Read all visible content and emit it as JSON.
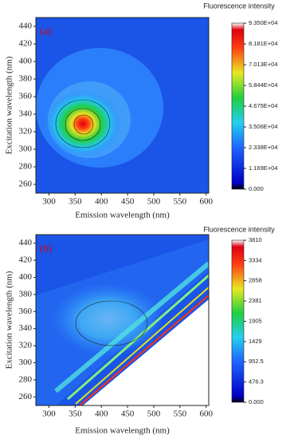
{
  "chart_data": [
    {
      "type": "heatmap",
      "panel_label": "(a)",
      "x_label": "Emission wavelength (nm)",
      "y_label": "Excitation wavelength (nm)",
      "xlim": [
        275,
        605
      ],
      "xticks": [
        300,
        350,
        400,
        450,
        500,
        550,
        600
      ],
      "ylim": [
        250,
        450
      ],
      "yticks": [
        260,
        280,
        300,
        320,
        340,
        360,
        380,
        400,
        420,
        440
      ],
      "colorbar_title": "Fluorescence intensity",
      "colorbar_lim": [
        0,
        93500
      ],
      "colorbar_ticks": [
        {
          "value": 0,
          "label": "0.000"
        },
        {
          "value": 11690,
          "label": "1.169E+04"
        },
        {
          "value": 23380,
          "label": "2.338E+04"
        },
        {
          "value": 35060,
          "label": "3.506E+04"
        },
        {
          "value": 46750,
          "label": "4.675E+04"
        },
        {
          "value": 58440,
          "label": "5.844E+04"
        },
        {
          "value": 70130,
          "label": "7.013E+04"
        },
        {
          "value": 81810,
          "label": "8.181E+04"
        },
        {
          "value": 93500,
          "label": "9.350E+04"
        }
      ]
    },
    {
      "type": "heatmap",
      "panel_label": "(b)",
      "x_label": "Emission wavelength (nm)",
      "y_label": "Excitation wavelength (nm)",
      "xlim": [
        275,
        605
      ],
      "xticks": [
        300,
        350,
        400,
        450,
        500,
        550,
        600
      ],
      "ylim": [
        250,
        450
      ],
      "yticks": [
        260,
        280,
        300,
        320,
        340,
        360,
        380,
        400,
        420,
        440
      ],
      "colorbar_title": "Fluorescence intensity",
      "colorbar_lim": [
        0,
        3810
      ],
      "colorbar_ticks": [
        {
          "value": 0,
          "label": "0.000"
        },
        476.3,
        952.5,
        1429,
        1905,
        2381,
        2858,
        3334,
        3810
      ]
    }
  ]
}
